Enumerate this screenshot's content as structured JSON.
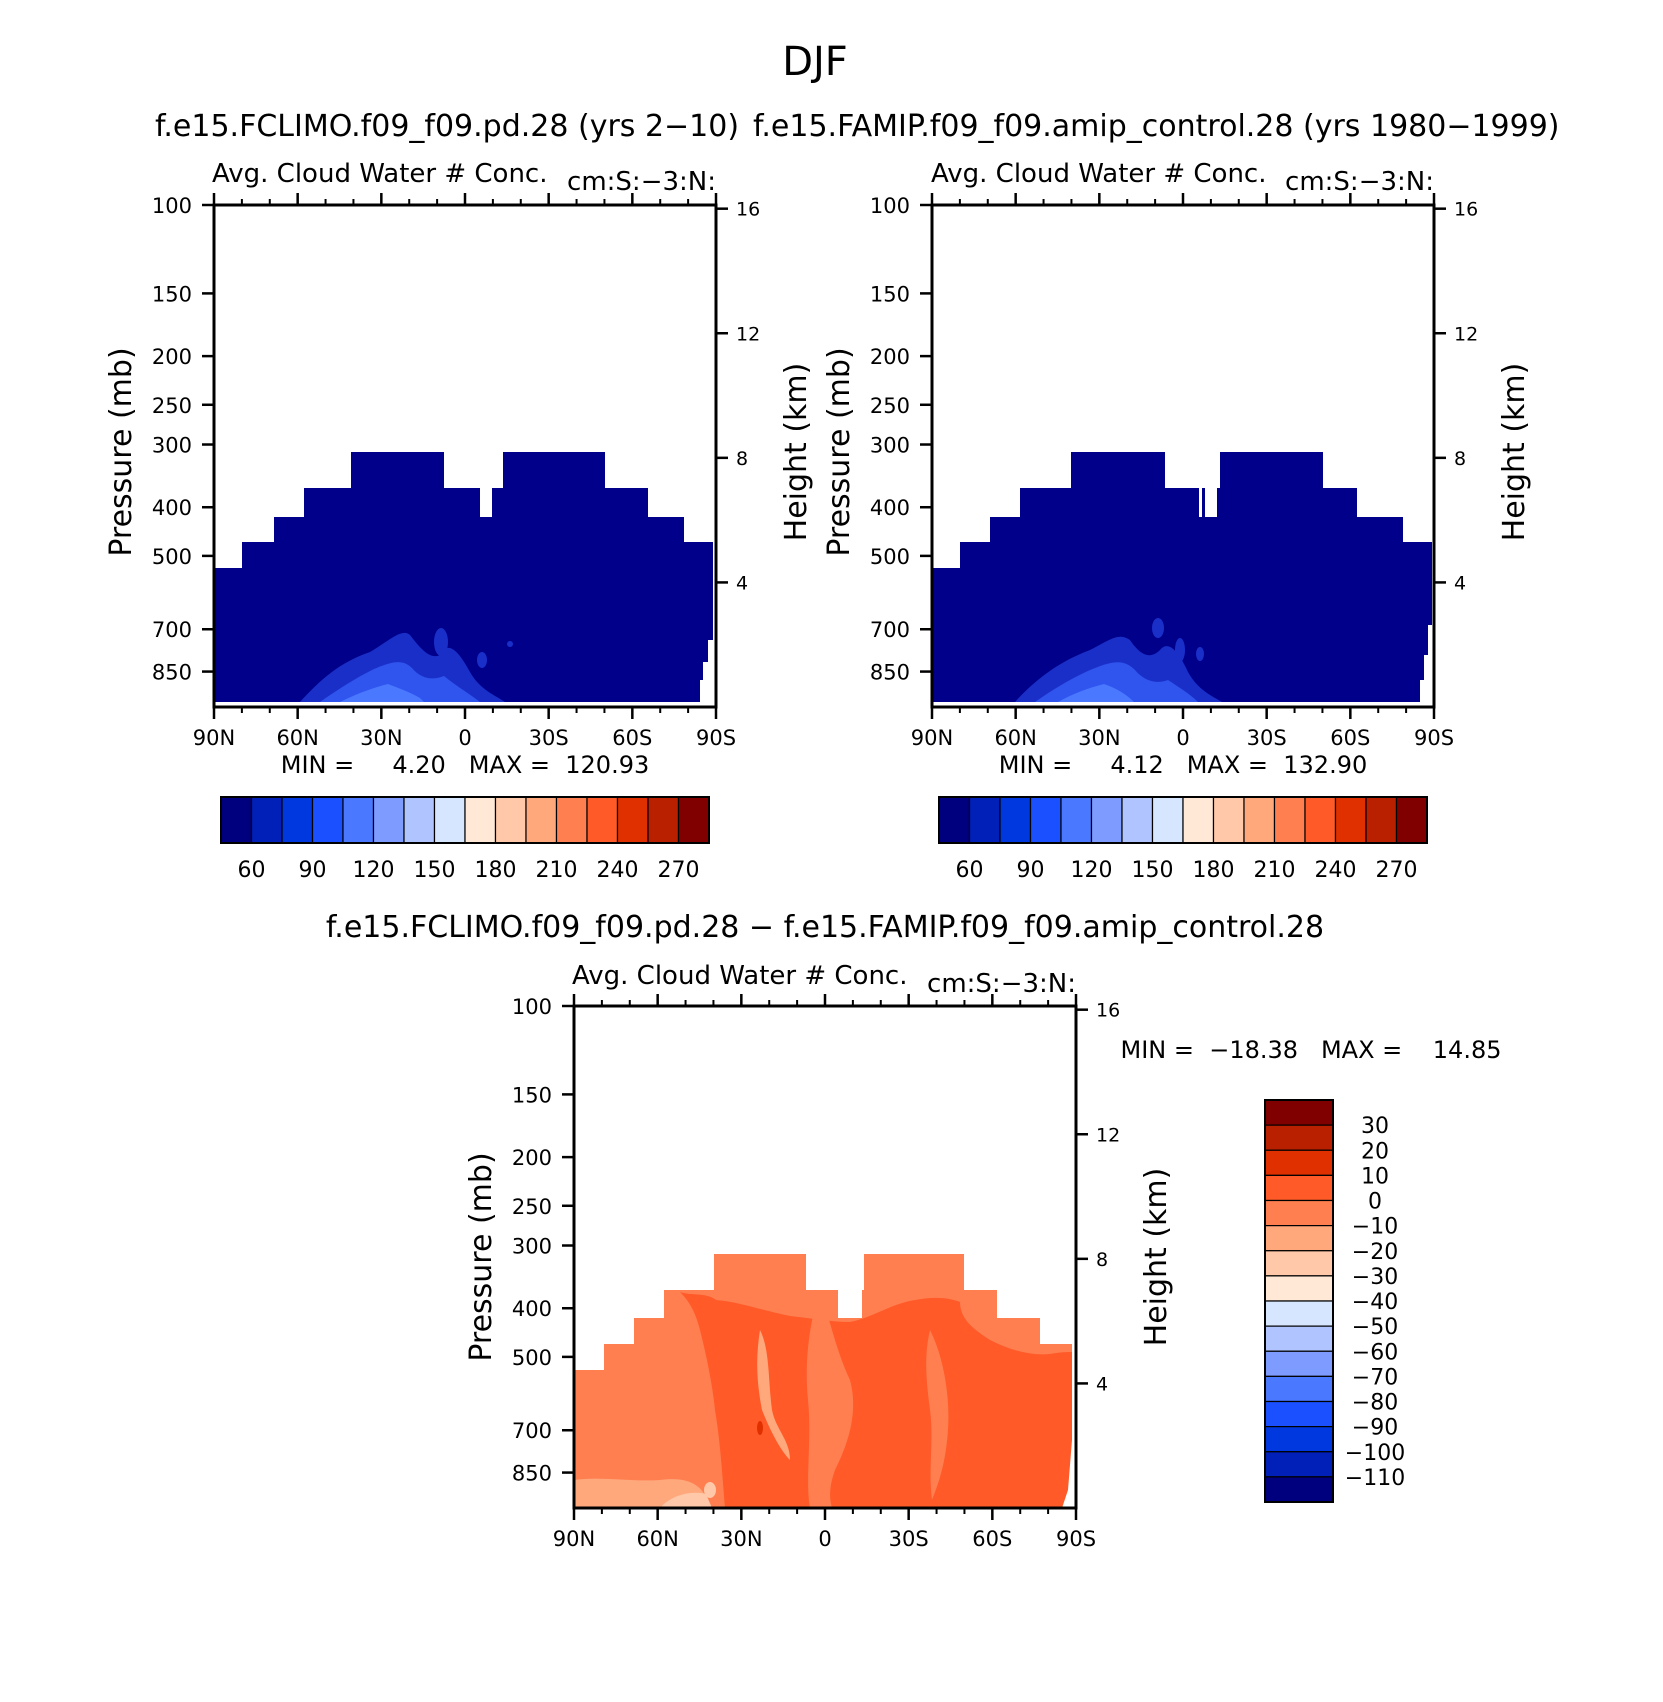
{
  "figure": {
    "title": "DJF",
    "diff_title": "f.e15.FCLIMO.f09_f09.pd.28 − f.e15.FAMIP.f09_f09.amip_control.28"
  },
  "chart_data": [
    {
      "type": "contour",
      "title": "f.e15.FCLIMO.f09_f09.pd.28 (yrs 2−10)",
      "left_string": "Avg. Cloud Water # Conc.",
      "right_string": "cm:S:−3:N:",
      "xlabel": "",
      "ylabel": "Pressure (mb)",
      "ylabel_right": "Height (km)",
      "x_ticks": [
        "90N",
        "60N",
        "30N",
        "0",
        "30S",
        "60S",
        "90S"
      ],
      "x_range": [
        90,
        -90
      ],
      "y_ticks": [
        100,
        150,
        200,
        250,
        300,
        400,
        500,
        700,
        850
      ],
      "y_range": [
        100,
        1000
      ],
      "height_ticks": [
        4,
        8,
        12,
        16
      ],
      "min_max": "MIN =     4.20   MAX =  120.93",
      "min": 4.2,
      "max": 120.93,
      "colorbar_labels": [
        "60",
        "90",
        "120",
        "150",
        "180",
        "210",
        "240",
        "270"
      ],
      "colorbar_orientation": "horizontal",
      "outline_edges": [
        [
          90,
          300
        ],
        [
          -90,
          300
        ]
      ]
    },
    {
      "type": "contour",
      "title": "f.e15.FAMIP.f09_f09.amip_control.28 (yrs 1980−1999)",
      "left_string": "Avg. Cloud Water # Conc.",
      "right_string": "cm:S:−3:N:",
      "xlabel": "",
      "ylabel": "Pressure (mb)",
      "ylabel_right": "Height (km)",
      "x_ticks": [
        "90N",
        "60N",
        "30N",
        "0",
        "30S",
        "60S",
        "90S"
      ],
      "x_range": [
        90,
        -90
      ],
      "y_ticks": [
        100,
        150,
        200,
        250,
        300,
        400,
        500,
        700,
        850
      ],
      "y_range": [
        100,
        1000
      ],
      "height_ticks": [
        4,
        8,
        12,
        16
      ],
      "min_max": "MIN =     4.12   MAX =  132.90",
      "min": 4.12,
      "max": 132.9,
      "colorbar_labels": [
        "60",
        "90",
        "120",
        "150",
        "180",
        "210",
        "240",
        "270"
      ],
      "colorbar_orientation": "horizontal"
    },
    {
      "type": "contour",
      "title": "",
      "left_string": "Avg. Cloud Water # Conc.",
      "right_string": "cm:S:−3:N:",
      "xlabel": "",
      "ylabel": "Pressure (mb)",
      "ylabel_right": "Height (km)",
      "x_ticks": [
        "90N",
        "60N",
        "30N",
        "0",
        "30S",
        "60S",
        "90S"
      ],
      "x_range": [
        90,
        -90
      ],
      "y_ticks": [
        100,
        150,
        200,
        250,
        300,
        400,
        500,
        700,
        850
      ],
      "y_range": [
        100,
        1000
      ],
      "height_ticks": [
        4,
        8,
        12,
        16
      ],
      "min_max": "MIN =  −18.38   MAX =    14.85",
      "min": -18.38,
      "max": 14.85,
      "colorbar_labels": [
        "30",
        "20",
        "10",
        "0",
        "−10",
        "−20",
        "−30",
        "−40",
        "−50",
        "−60",
        "−70",
        "−80",
        "−90",
        "−100",
        "−110"
      ],
      "colorbar_orientation": "vertical"
    }
  ],
  "colors": {
    "seq_colorbar": [
      "#00007f",
      "#0020b8",
      "#0038e0",
      "#1a50ff",
      "#4a78ff",
      "#7e9cff",
      "#b0c4ff",
      "#d6e6ff",
      "#ffe8d6",
      "#ffc8a8",
      "#ffa87c",
      "#ff7f50",
      "#ff5a28",
      "#e03000",
      "#b82000",
      "#800000"
    ],
    "diff_colorbar": [
      "#800000",
      "#b82000",
      "#e03000",
      "#ff5a28",
      "#ff7f50",
      "#ffa87c",
      "#ffc8a8",
      "#ffe8d6",
      "#d6e6ff",
      "#b0c4ff",
      "#7e9cff",
      "#4a78ff",
      "#1a50ff",
      "#0038e0",
      "#0020b8",
      "#00007f"
    ],
    "field_navy": "#00008b",
    "field_blue1": "#1a2fc8",
    "field_blue2": "#2f55ee",
    "field_blue3": "#4a78ff",
    "diff_base": "#ff7f50",
    "diff_mid": "#ff5a28",
    "diff_light": "#ffa87c",
    "diff_dark": "#e03000"
  }
}
